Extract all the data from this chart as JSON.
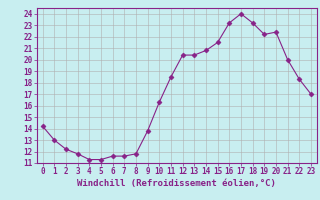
{
  "x": [
    0,
    1,
    2,
    3,
    4,
    5,
    6,
    7,
    8,
    9,
    10,
    11,
    12,
    13,
    14,
    15,
    16,
    17,
    18,
    19,
    20,
    21,
    22,
    23
  ],
  "y": [
    14.2,
    13.0,
    12.2,
    11.8,
    11.3,
    11.3,
    11.6,
    11.6,
    11.8,
    13.8,
    16.3,
    18.5,
    20.4,
    20.4,
    20.8,
    21.5,
    23.2,
    24.0,
    23.2,
    22.2,
    22.4,
    20.0,
    18.3,
    17.0
  ],
  "line_color": "#882288",
  "marker": "D",
  "marker_size": 2.5,
  "bg_color": "#c8eef0",
  "grid_color": "#b0b0b0",
  "xlabel": "Windchill (Refroidissement éolien,°C)",
  "ylim": [
    11,
    24.5
  ],
  "xlim": [
    -0.5,
    23.5
  ],
  "yticks": [
    11,
    12,
    13,
    14,
    15,
    16,
    17,
    18,
    19,
    20,
    21,
    22,
    23,
    24
  ],
  "xticks": [
    0,
    1,
    2,
    3,
    4,
    5,
    6,
    7,
    8,
    9,
    10,
    11,
    12,
    13,
    14,
    15,
    16,
    17,
    18,
    19,
    20,
    21,
    22,
    23
  ],
  "tick_fontsize": 5.5,
  "xlabel_fontsize": 6.5,
  "label_color": "#882288"
}
